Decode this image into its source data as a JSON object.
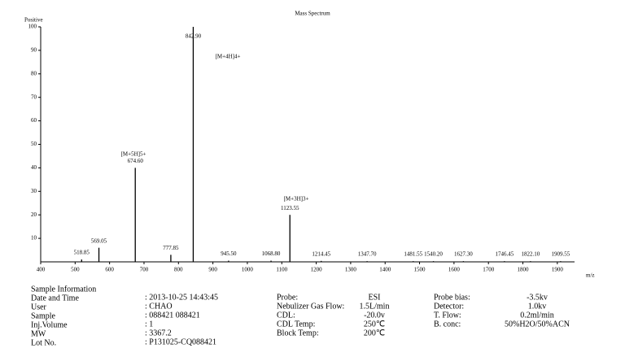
{
  "chart_data": {
    "type": "stick",
    "title": "Mass Spectrum",
    "subtitle": "Positive",
    "x_label": "m/z",
    "x": [
      518.85,
      569.05,
      674.6,
      777.85,
      842.9,
      945.5,
      1068.8,
      1123.55,
      1214.45,
      1347.7,
      1481.55,
      1540.2,
      1627.3,
      1746.45,
      1822.1,
      1909.55
    ],
    "value_labels": [
      "518.85",
      "569.05",
      "674.60",
      "777.85",
      "842.90",
      "945.50",
      "1068.80",
      "1123.55",
      "1214.45",
      "1347.70",
      "1481.55",
      "1540.20",
      "1627.30",
      "1746.45",
      "1822.10",
      "1909.55"
    ],
    "values": [
      1,
      6,
      40,
      3,
      100,
      0.5,
      0.5,
      20,
      0.4,
      0.3,
      0.3,
      0.3,
      0.3,
      0.3,
      0.3,
      0.3
    ],
    "color": "#000000",
    "xlim": [
      400,
      1950
    ],
    "xticks": [
      400,
      500,
      600,
      700,
      800,
      900,
      1000,
      1100,
      1200,
      1300,
      1400,
      1500,
      1600,
      1700,
      1800,
      1900
    ],
    "ylim": [
      0,
      100
    ],
    "yticks": [
      10,
      20,
      30,
      40,
      50,
      60,
      70,
      80,
      90,
      100
    ],
    "annotations": [
      "[M+5H]5+",
      "[M+4H]4+",
      "[M+3H]3+"
    ]
  },
  "info": {
    "title": "Sample Information",
    "rows": [
      [
        "Date and Time",
        ": 2013-10-25 14:43:45"
      ],
      [
        "User",
        ": CHAO"
      ],
      [
        "Sample",
        ": 088421 088421"
      ],
      [
        "Inj.Volume",
        ": 1"
      ],
      [
        "MW",
        ": 3367.2"
      ],
      [
        "Lot No.",
        ": P131025-CQ088421"
      ]
    ],
    "mid": [
      [
        "Probe:",
        "ESI"
      ],
      [
        "Nebulizer Gas Flow:",
        "1.5L/min"
      ],
      [
        "CDL:",
        "-20.0v"
      ],
      [
        "CDL Temp:",
        "250℃"
      ],
      [
        "Block Temp:",
        "200℃"
      ]
    ],
    "right": [
      [
        "Probe bias:",
        "-3.5kv"
      ],
      [
        "Detector:",
        "1.0kv"
      ],
      [
        "T. Flow:",
        "0.2ml/min"
      ],
      [
        "B. conc:",
        "50%H2O/50%ACN"
      ]
    ]
  }
}
